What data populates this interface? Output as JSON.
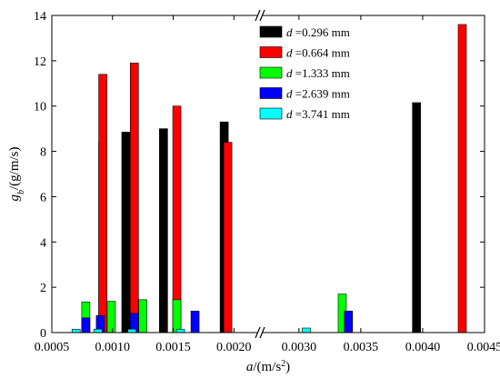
{
  "chart_data": {
    "type": "bar",
    "xlabel": {
      "main": "a",
      "unit": "/(m/s",
      "sup": "2",
      "close": ")"
    },
    "ylabel": {
      "main": "g",
      "sub": "b",
      "unit": "/(g/m/s)"
    },
    "x_axis": {
      "broken": true,
      "segments": [
        {
          "range": [
            0.0005,
            0.0022
          ],
          "ticks": [
            0.0005,
            0.001,
            0.0015,
            0.002
          ],
          "tick_labels": [
            "0.0005",
            "0.0010",
            "0.0015",
            "0.0020"
          ]
        },
        {
          "range": [
            0.0027,
            0.0045
          ],
          "ticks": [
            0.003,
            0.0035,
            0.004,
            0.0045
          ],
          "tick_labels": [
            "0.0030",
            "0.0035",
            "0.0040",
            "0.0045"
          ]
        }
      ]
    },
    "ylim": [
      0,
      14
    ],
    "yticks": [
      0,
      2,
      4,
      6,
      8,
      10,
      12,
      14
    ],
    "ytick_labels": [
      "0",
      "2",
      "4",
      "6",
      "8",
      "10",
      "12",
      "14"
    ],
    "legend_position": "top-right",
    "series": [
      {
        "name": "d =0.296 mm",
        "legend_var": "d",
        "legend_rest": " =0.296 mm",
        "color": "#000000",
        "points": [
          {
            "x": 0.00092,
            "y": 8.4
          },
          {
            "x": 0.00111,
            "y": 8.85
          },
          {
            "x": 0.00142,
            "y": 9.0
          },
          {
            "x": 0.00192,
            "y": 9.3
          },
          {
            "x": 0.00395,
            "y": 10.15
          }
        ]
      },
      {
        "name": "d =0.664 mm",
        "legend_var": "d",
        "legend_rest": " =0.664 mm",
        "color": "#ff0000",
        "points": [
          {
            "x": 0.00092,
            "y": 11.4
          },
          {
            "x": 0.00118,
            "y": 11.9
          },
          {
            "x": 0.00153,
            "y": 10.0
          },
          {
            "x": 0.00195,
            "y": 8.4
          },
          {
            "x": 0.00432,
            "y": 13.6
          }
        ]
      },
      {
        "name": "d =1.333 mm",
        "legend_var": "d",
        "legend_rest": " =1.333 mm",
        "color": "#00ff00",
        "points": [
          {
            "x": 0.00078,
            "y": 1.35
          },
          {
            "x": 0.00099,
            "y": 1.38
          },
          {
            "x": 0.00125,
            "y": 1.45
          },
          {
            "x": 0.00153,
            "y": 1.45
          },
          {
            "x": 0.00335,
            "y": 1.7
          }
        ]
      },
      {
        "name": "d =2.639 mm",
        "legend_var": "d",
        "legend_rest": " =2.639 mm",
        "color": "#0000ff",
        "points": [
          {
            "x": 0.00078,
            "y": 0.65
          },
          {
            "x": 0.0009,
            "y": 0.75
          },
          {
            "x": 0.00118,
            "y": 0.85
          },
          {
            "x": 0.00168,
            "y": 0.95
          },
          {
            "x": 0.0034,
            "y": 0.95
          }
        ]
      },
      {
        "name": "d =3.741 mm",
        "legend_var": "d",
        "legend_rest": " =3.741 mm",
        "color": "#00ffff",
        "points": [
          {
            "x": 0.0007,
            "y": 0.15
          },
          {
            "x": 0.00088,
            "y": 0.15
          },
          {
            "x": 0.00116,
            "y": 0.15
          },
          {
            "x": 0.00156,
            "y": 0.15
          },
          {
            "x": 0.00306,
            "y": 0.2
          }
        ]
      }
    ]
  }
}
